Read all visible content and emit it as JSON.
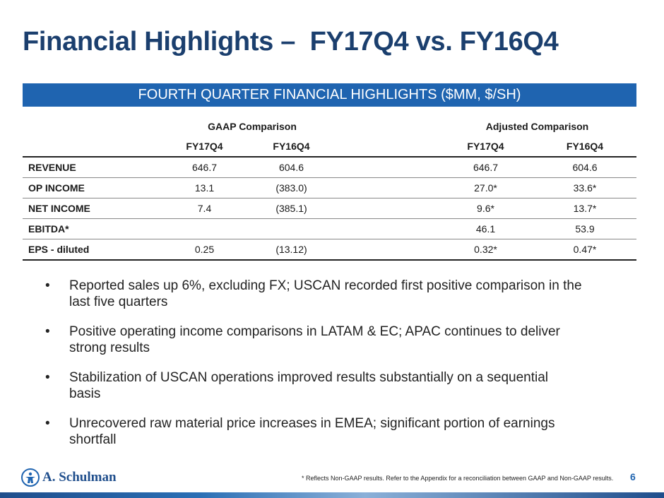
{
  "title": "Financial Highlights –  FY17Q4 vs. FY16Q4",
  "banner": "FOURTH QUARTER FINANCIAL HIGHLIGHTS ($MM, $/SH)",
  "table": {
    "group_gaap": "GAAP Comparison",
    "group_adjusted": "Adjusted Comparison",
    "headers": [
      "FY17Q4",
      "FY16Q4",
      "FY17Q4",
      "FY16Q4"
    ],
    "rows": [
      {
        "label": "REVENUE",
        "values": [
          "646.7",
          "604.6",
          "646.7",
          "604.6"
        ]
      },
      {
        "label": "OP INCOME",
        "values": [
          "13.1",
          "(383.0)",
          "27.0*",
          "33.6*"
        ]
      },
      {
        "label": "NET INCOME",
        "values": [
          "7.4",
          "(385.1)",
          "9.6*",
          "13.7*"
        ]
      },
      {
        "label": "EBITDA*",
        "values": [
          "",
          "",
          "46.1",
          "53.9"
        ]
      },
      {
        "label": "EPS - diluted",
        "values": [
          "0.25",
          "(13.12)",
          "0.32*",
          "0.47*"
        ]
      }
    ]
  },
  "bullets": [
    "Reported sales up 6%, excluding FX; USCAN recorded first positive comparison in the last five quarters",
    "Positive operating income comparisons in LATAM & EC; APAC continues to deliver strong results",
    "Stabilization of USCAN operations improved results substantially on a sequential basis",
    "Unrecovered raw material price increases in EMEA; significant portion of earnings shortfall"
  ],
  "bullet_symbol": "•",
  "logo_text": "A. Schulman",
  "logo_icon": "person-emblem-icon",
  "footnote": "* Reflects Non-GAAP results. Refer to the Appendix for a reconciliation between GAAP and Non-GAAP results.",
  "page_number": "6",
  "colors": {
    "title": "#1b3f6e",
    "banner": "#1f64b0",
    "page_number": "#1f64b0"
  }
}
